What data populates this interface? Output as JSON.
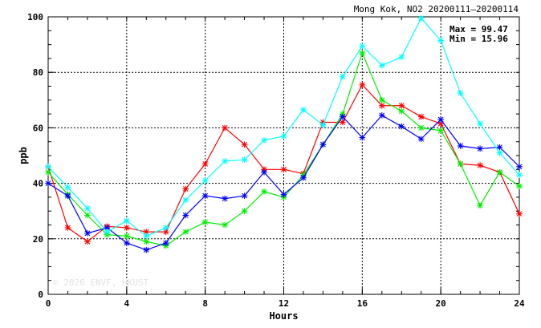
{
  "chart_data": {
    "type": "line",
    "title": "Mong Kok, NO2 20200111–20200114",
    "xlabel": "Hours",
    "ylabel": "ppb",
    "xlim": [
      0,
      24
    ],
    "ylim": [
      0,
      100
    ],
    "x_ticks": [
      0,
      4,
      8,
      12,
      16,
      20,
      24
    ],
    "y_ticks": [
      0,
      20,
      40,
      60,
      80,
      100
    ],
    "grid": true,
    "max_text": "Max = 99.47",
    "min_text": "Min = 15.96",
    "watermark": "© 2026  ENVF, HKUST",
    "x": [
      0,
      1,
      2,
      3,
      4,
      5,
      6,
      7,
      8,
      9,
      10,
      11,
      12,
      13,
      14,
      15,
      16,
      17,
      18,
      19,
      20,
      21,
      22,
      23,
      24
    ],
    "series": [
      {
        "color": "#ff0000",
        "values": [
          46,
          24,
          19,
          24.5,
          24,
          22.5,
          22.5,
          38,
          47,
          60,
          54,
          45,
          45,
          43.5,
          62,
          62,
          75.5,
          68,
          68,
          64,
          61.5,
          47,
          46.5,
          44,
          29
        ]
      },
      {
        "color": "#00ee00",
        "values": [
          44,
          36,
          28.5,
          21.5,
          21,
          19,
          17.5,
          22.5,
          26,
          25,
          30,
          37,
          35,
          43,
          54,
          65,
          87,
          70,
          66,
          60,
          59,
          47,
          32,
          44,
          39
        ]
      },
      {
        "color": "#0000ff",
        "values": [
          40,
          35.5,
          22,
          24,
          18.5,
          16,
          18.5,
          28.5,
          35.5,
          34.5,
          35.5,
          44,
          36,
          42,
          54,
          64,
          56.5,
          64.5,
          60.5,
          56,
          63,
          53.5,
          52.5,
          53,
          46
        ]
      },
      {
        "color": "#00ffff",
        "values": [
          46,
          38.5,
          31,
          22.5,
          26.5,
          21,
          24,
          34,
          41,
          48,
          48.5,
          55.5,
          57,
          66.5,
          61,
          78.5,
          89.5,
          82.5,
          85.5,
          99.5,
          91.5,
          72.5,
          61.5,
          51,
          43
        ]
      }
    ]
  }
}
